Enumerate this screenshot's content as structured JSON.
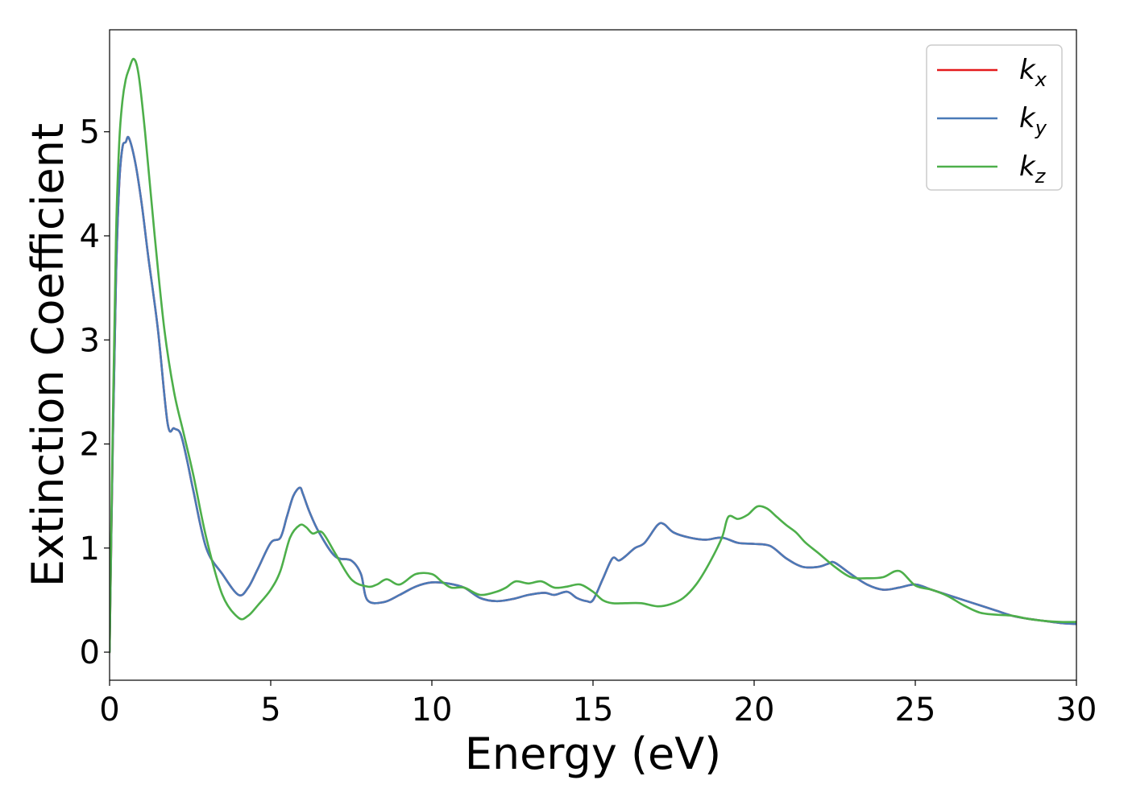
{
  "chart_data": {
    "type": "line",
    "title": "",
    "xlabel": "Energy (eV)",
    "ylabel": "Extinction Coefficient",
    "xlim": [
      0,
      30
    ],
    "ylim": [
      -0.27,
      5.98
    ],
    "xticks": [
      0,
      5,
      10,
      15,
      20,
      25,
      30
    ],
    "xtick_labels": [
      "0",
      "5",
      "10",
      "15",
      "20",
      "25",
      "30"
    ],
    "yticks": [
      0,
      1,
      2,
      3,
      4,
      5
    ],
    "ytick_labels": [
      "0",
      "1",
      "2",
      "3",
      "4",
      "5"
    ],
    "grid": false,
    "legend_position": "top-right",
    "series": [
      {
        "name": "k",
        "subscript": "x",
        "color": "#e41a1c",
        "x": [
          0,
          0.1,
          0.2,
          0.3,
          0.4,
          0.5,
          0.6,
          0.8,
          1.0,
          1.2,
          1.5,
          1.8,
          2.0,
          2.2,
          2.4,
          2.6,
          3.0,
          3.5,
          4.0,
          4.3,
          4.6,
          5.0,
          5.3,
          5.5,
          5.7,
          5.9,
          6.0,
          6.2,
          6.5,
          7.0,
          7.5,
          7.8,
          8.0,
          8.5,
          9.0,
          9.5,
          10.0,
          10.5,
          11.0,
          11.5,
          12.0,
          12.5,
          13.0,
          13.5,
          13.8,
          14.2,
          14.5,
          14.8,
          15.0,
          15.3,
          15.6,
          15.8,
          16.0,
          16.3,
          16.6,
          17.0,
          17.2,
          17.5,
          18.0,
          18.5,
          19.0,
          19.5,
          20.0,
          20.5,
          21.0,
          21.5,
          22.0,
          22.3,
          22.5,
          23.0,
          23.5,
          24.0,
          24.5,
          25.0,
          25.5,
          26.0,
          26.5,
          27.0,
          27.5,
          28.0,
          28.5,
          29.0,
          29.5,
          30.0
        ],
        "y": [
          0.0,
          2.0,
          3.6,
          4.5,
          4.85,
          4.9,
          4.94,
          4.7,
          4.3,
          3.8,
          3.1,
          2.2,
          2.15,
          2.1,
          1.85,
          1.55,
          1.0,
          0.75,
          0.55,
          0.62,
          0.8,
          1.05,
          1.1,
          1.3,
          1.5,
          1.58,
          1.52,
          1.35,
          1.15,
          0.92,
          0.88,
          0.75,
          0.5,
          0.48,
          0.55,
          0.63,
          0.67,
          0.66,
          0.62,
          0.52,
          0.49,
          0.51,
          0.55,
          0.57,
          0.55,
          0.58,
          0.52,
          0.49,
          0.5,
          0.7,
          0.9,
          0.88,
          0.92,
          1.0,
          1.05,
          1.22,
          1.23,
          1.15,
          1.1,
          1.08,
          1.1,
          1.05,
          1.04,
          1.02,
          0.9,
          0.82,
          0.82,
          0.85,
          0.86,
          0.75,
          0.65,
          0.6,
          0.62,
          0.65,
          0.6,
          0.55,
          0.5,
          0.45,
          0.4,
          0.35,
          0.32,
          0.3,
          0.28,
          0.27
        ]
      },
      {
        "name": "k",
        "subscript": "y",
        "color": "#4a7ab8",
        "x": [
          0,
          0.1,
          0.2,
          0.3,
          0.4,
          0.5,
          0.6,
          0.8,
          1.0,
          1.2,
          1.5,
          1.8,
          2.0,
          2.2,
          2.4,
          2.6,
          3.0,
          3.5,
          4.0,
          4.3,
          4.6,
          5.0,
          5.3,
          5.5,
          5.7,
          5.9,
          6.0,
          6.2,
          6.5,
          7.0,
          7.5,
          7.8,
          8.0,
          8.5,
          9.0,
          9.5,
          10.0,
          10.5,
          11.0,
          11.5,
          12.0,
          12.5,
          13.0,
          13.5,
          13.8,
          14.2,
          14.5,
          14.8,
          15.0,
          15.3,
          15.6,
          15.8,
          16.0,
          16.3,
          16.6,
          17.0,
          17.2,
          17.5,
          18.0,
          18.5,
          19.0,
          19.5,
          20.0,
          20.5,
          21.0,
          21.5,
          22.0,
          22.3,
          22.5,
          23.0,
          23.5,
          24.0,
          24.5,
          25.0,
          25.5,
          26.0,
          26.5,
          27.0,
          27.5,
          28.0,
          28.5,
          29.0,
          29.5,
          30.0
        ],
        "y": [
          0.0,
          2.0,
          3.6,
          4.5,
          4.85,
          4.9,
          4.94,
          4.7,
          4.3,
          3.8,
          3.1,
          2.2,
          2.15,
          2.1,
          1.85,
          1.55,
          1.0,
          0.75,
          0.55,
          0.62,
          0.8,
          1.05,
          1.1,
          1.3,
          1.5,
          1.58,
          1.52,
          1.35,
          1.15,
          0.92,
          0.88,
          0.75,
          0.5,
          0.48,
          0.55,
          0.63,
          0.67,
          0.66,
          0.62,
          0.52,
          0.49,
          0.51,
          0.55,
          0.57,
          0.55,
          0.58,
          0.52,
          0.49,
          0.5,
          0.7,
          0.9,
          0.88,
          0.92,
          1.0,
          1.05,
          1.22,
          1.23,
          1.15,
          1.1,
          1.08,
          1.1,
          1.05,
          1.04,
          1.02,
          0.9,
          0.82,
          0.82,
          0.85,
          0.86,
          0.75,
          0.65,
          0.6,
          0.62,
          0.65,
          0.6,
          0.55,
          0.5,
          0.45,
          0.4,
          0.35,
          0.32,
          0.3,
          0.28,
          0.27
        ]
      },
      {
        "name": "k",
        "subscript": "z",
        "color": "#4daf4a",
        "x": [
          0,
          0.1,
          0.2,
          0.3,
          0.4,
          0.5,
          0.6,
          0.75,
          0.9,
          1.1,
          1.4,
          1.7,
          2.0,
          2.3,
          2.6,
          3.0,
          3.5,
          4.0,
          4.3,
          4.6,
          5.0,
          5.3,
          5.6,
          5.9,
          6.1,
          6.3,
          6.6,
          7.0,
          7.5,
          8.0,
          8.3,
          8.6,
          9.0,
          9.5,
          10.0,
          10.3,
          10.6,
          11.0,
          11.5,
          12.0,
          12.3,
          12.6,
          13.0,
          13.4,
          13.8,
          14.2,
          14.6,
          15.0,
          15.3,
          15.6,
          16.0,
          16.5,
          17.0,
          17.4,
          17.8,
          18.2,
          18.6,
          19.0,
          19.2,
          19.5,
          19.8,
          20.1,
          20.4,
          20.7,
          21.0,
          21.3,
          21.6,
          22.0,
          22.5,
          23.0,
          23.5,
          24.0,
          24.5,
          25.0,
          25.5,
          26.0,
          26.5,
          27.0,
          27.5,
          28.0,
          28.5,
          29.0,
          29.5,
          30.0
        ],
        "y": [
          0.0,
          2.2,
          4.0,
          4.9,
          5.3,
          5.5,
          5.6,
          5.7,
          5.55,
          5.0,
          4.0,
          3.1,
          2.5,
          2.1,
          1.7,
          1.1,
          0.55,
          0.33,
          0.35,
          0.45,
          0.6,
          0.78,
          1.1,
          1.22,
          1.2,
          1.14,
          1.15,
          0.95,
          0.7,
          0.63,
          0.65,
          0.7,
          0.65,
          0.75,
          0.75,
          0.68,
          0.62,
          0.62,
          0.55,
          0.58,
          0.62,
          0.68,
          0.66,
          0.68,
          0.62,
          0.63,
          0.65,
          0.58,
          0.5,
          0.47,
          0.47,
          0.47,
          0.44,
          0.46,
          0.52,
          0.65,
          0.85,
          1.1,
          1.3,
          1.28,
          1.32,
          1.4,
          1.38,
          1.3,
          1.22,
          1.15,
          1.05,
          0.95,
          0.82,
          0.72,
          0.71,
          0.72,
          0.78,
          0.64,
          0.6,
          0.54,
          0.45,
          0.38,
          0.36,
          0.35,
          0.32,
          0.3,
          0.29,
          0.29
        ]
      }
    ]
  }
}
